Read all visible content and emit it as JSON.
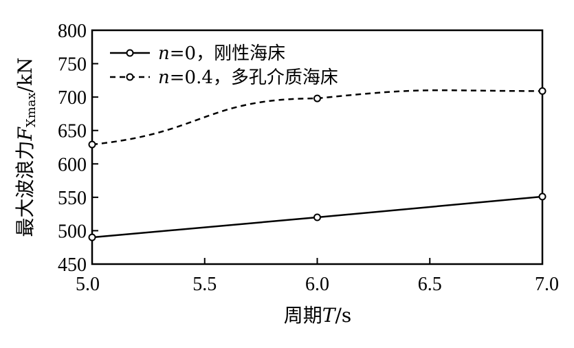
{
  "chart_data": {
    "type": "line",
    "x": [
      5.0,
      6.0,
      7.0
    ],
    "xticks": [
      "5.0",
      "5.5",
      "6.0",
      "6.5",
      "7.0"
    ],
    "yticks": [
      "450",
      "500",
      "550",
      "600",
      "650",
      "700",
      "750",
      "800"
    ],
    "xlim": [
      5.0,
      7.0
    ],
    "ylim": [
      450,
      800
    ],
    "xlabel": "周期T/s",
    "ylabel": "最大波浪力F_Xmax/kN",
    "series": [
      {
        "name": "n=0，刚性海床",
        "style": "solid",
        "values": [
          490,
          520,
          551
        ]
      },
      {
        "name": "n=0.4，多孔介质海床",
        "style": "dashed",
        "values": [
          629,
          698,
          709
        ]
      }
    ],
    "legend_position": "top-left",
    "grid": false,
    "line_color": "#000000",
    "marker": "open-circle"
  }
}
